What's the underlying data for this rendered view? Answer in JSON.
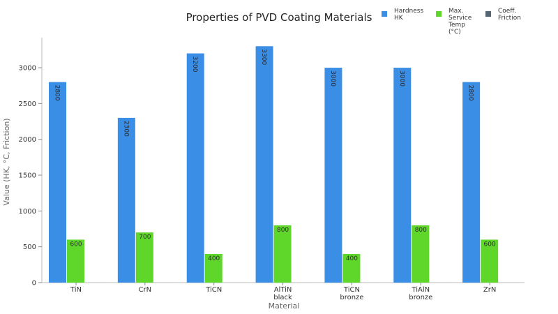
{
  "chart_data": {
    "type": "bar",
    "title": "Properties of PVD Coating Materials",
    "xlabel": "Material",
    "ylabel": "Value (HK, °C, Friction)",
    "ylim": [
      0,
      3400
    ],
    "yticks": [
      0,
      500,
      1000,
      1500,
      2000,
      2500,
      3000
    ],
    "grid": false,
    "legend_position": "top-right",
    "categories": [
      [
        "TiN"
      ],
      [
        "CrN"
      ],
      [
        "TiCN"
      ],
      [
        "AlTiN",
        "black"
      ],
      [
        "TiCN",
        "bronze"
      ],
      [
        "TiAlN",
        "bronze"
      ],
      [
        "ZrN"
      ]
    ],
    "series": [
      {
        "name": [
          "Hardness",
          "HK"
        ],
        "color": "#3a8ee6",
        "values": [
          2800,
          2300,
          3200,
          3300,
          3000,
          3000,
          2800
        ]
      },
      {
        "name": [
          "Max.",
          "Service",
          "Temp",
          "(°C)"
        ],
        "color": "#5fd62a",
        "values": [
          600,
          700,
          400,
          800,
          400,
          800,
          600
        ]
      },
      {
        "name": [
          "Coeff.",
          "Friction"
        ],
        "color": "#56656f",
        "values": [
          0.25,
          0.2,
          0.1,
          0.4,
          0.25,
          0.4,
          0.3
        ]
      }
    ]
  }
}
